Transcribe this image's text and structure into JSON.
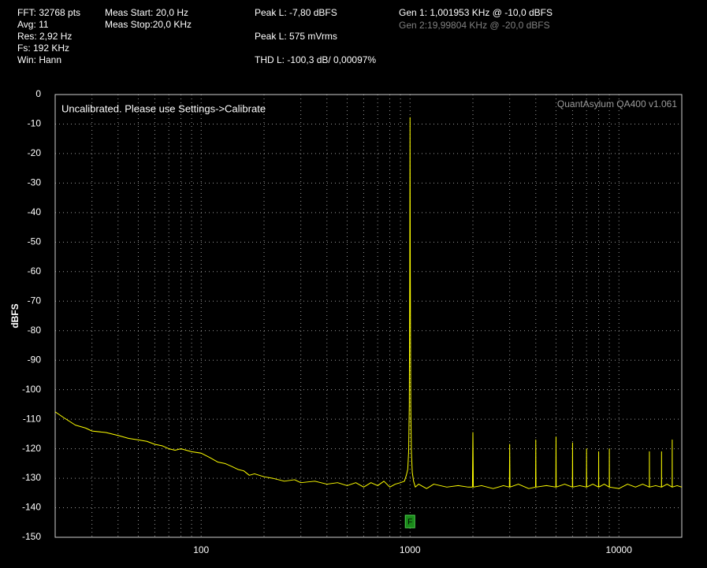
{
  "chart_data": {
    "type": "line",
    "header": {
      "col1": [
        "FFT: 32768 pts",
        "Avg: 11",
        "Res: 2,92 Hz",
        "Fs: 192 KHz",
        "Win: Hann"
      ],
      "col2": [
        "Meas Start: 20,0 Hz",
        "Meas Stop:20,0 KHz"
      ],
      "col3": [
        "Peak L: -7,80 dBFS",
        "Peak L: 575 mVrms",
        "THD L: -100,3 dB/ 0,00097%"
      ],
      "col4": [
        "Gen 1: 1,001953 KHz @ -10,0  dBFS",
        "Gen 2:19,99804 KHz @ -20,0  dBFS"
      ]
    },
    "annotation": "Uncalibrated. Please use Settings->Calibrate",
    "watermark": "QuantAsylum QA400 v1.061",
    "ylabel": "dBFS",
    "marker": {
      "label": "F",
      "x": 1000,
      "color": "#1a8a1a"
    },
    "xscale": "log",
    "xlim": [
      20,
      20000
    ],
    "ylim": [
      -150,
      0
    ],
    "xticks": [
      100,
      1000,
      10000
    ],
    "xgrid": [
      30,
      40,
      50,
      60,
      70,
      80,
      90,
      200,
      300,
      400,
      500,
      600,
      700,
      800,
      900,
      2000,
      3000,
      4000,
      5000,
      6000,
      7000,
      8000,
      9000
    ],
    "yticks": [
      0,
      -10,
      -20,
      -30,
      -40,
      -50,
      -60,
      -70,
      -80,
      -90,
      -100,
      -110,
      -120,
      -130,
      -140,
      -150
    ],
    "grid": true,
    "x": [
      20,
      22,
      25,
      28,
      30,
      35,
      40,
      45,
      50,
      55,
      60,
      65,
      70,
      75,
      80,
      90,
      100,
      110,
      120,
      130,
      140,
      150,
      160,
      170,
      180,
      200,
      220,
      250,
      280,
      300,
      350,
      400,
      450,
      500,
      550,
      600,
      650,
      700,
      750,
      800,
      850,
      900,
      940,
      960,
      975,
      985,
      992,
      997,
      1000,
      1003,
      1008,
      1015,
      1025,
      1040,
      1060,
      1100,
      1200,
      1300,
      1500,
      1700,
      1900,
      1990,
      2000,
      2010,
      2200,
      2500,
      2800,
      2990,
      3000,
      3010,
      3300,
      3700,
      3990,
      4000,
      4010,
      4500,
      4990,
      5000,
      5010,
      5500,
      5990,
      6000,
      6010,
      6500,
      6990,
      7000,
      7010,
      7500,
      7990,
      8000,
      8010,
      8500,
      8990,
      9000,
      9010,
      10000,
      11000,
      12000,
      13000,
      13990,
      14000,
      14010,
      15000,
      15990,
      16000,
      16010,
      17000,
      17990,
      18000,
      18010,
      19000,
      20000
    ],
    "series": [
      {
        "name": "L",
        "color": "#ffff00",
        "values": [
          -107.5,
          -109.5,
          -112,
          -113,
          -114,
          -114.5,
          -115.5,
          -116.5,
          -117,
          -117.5,
          -118.5,
          -119,
          -120,
          -120.5,
          -120,
          -121,
          -121.5,
          -123,
          -124.5,
          -125,
          -126,
          -127,
          -127.5,
          -129,
          -128.5,
          -129.5,
          -130,
          -131,
          -130.5,
          -131.5,
          -131,
          -132,
          -131.5,
          -132.5,
          -131.5,
          -133,
          -131.5,
          -132.5,
          -131,
          -133,
          -132,
          -131.5,
          -131,
          -129,
          -127,
          -121,
          -105,
          -60,
          -7.8,
          -60,
          -105,
          -121,
          -128,
          -131,
          -133,
          -132,
          -133.5,
          -132,
          -133,
          -132.5,
          -133,
          -133,
          -114.5,
          -133,
          -132.5,
          -133.5,
          -132.5,
          -133,
          -118.5,
          -133,
          -132,
          -133.5,
          -133,
          -117,
          -133,
          -132.5,
          -133,
          -116,
          -133,
          -132,
          -133,
          -118,
          -133,
          -132.5,
          -133,
          -120,
          -133,
          -132,
          -133,
          -121,
          -133,
          -132,
          -133,
          -120,
          -133,
          -133.5,
          -132,
          -133,
          -132,
          -133,
          -121,
          -133,
          -132.5,
          -133,
          -121,
          -133,
          -132,
          -133,
          -117,
          -133,
          -132.5,
          -133
        ]
      }
    ]
  }
}
